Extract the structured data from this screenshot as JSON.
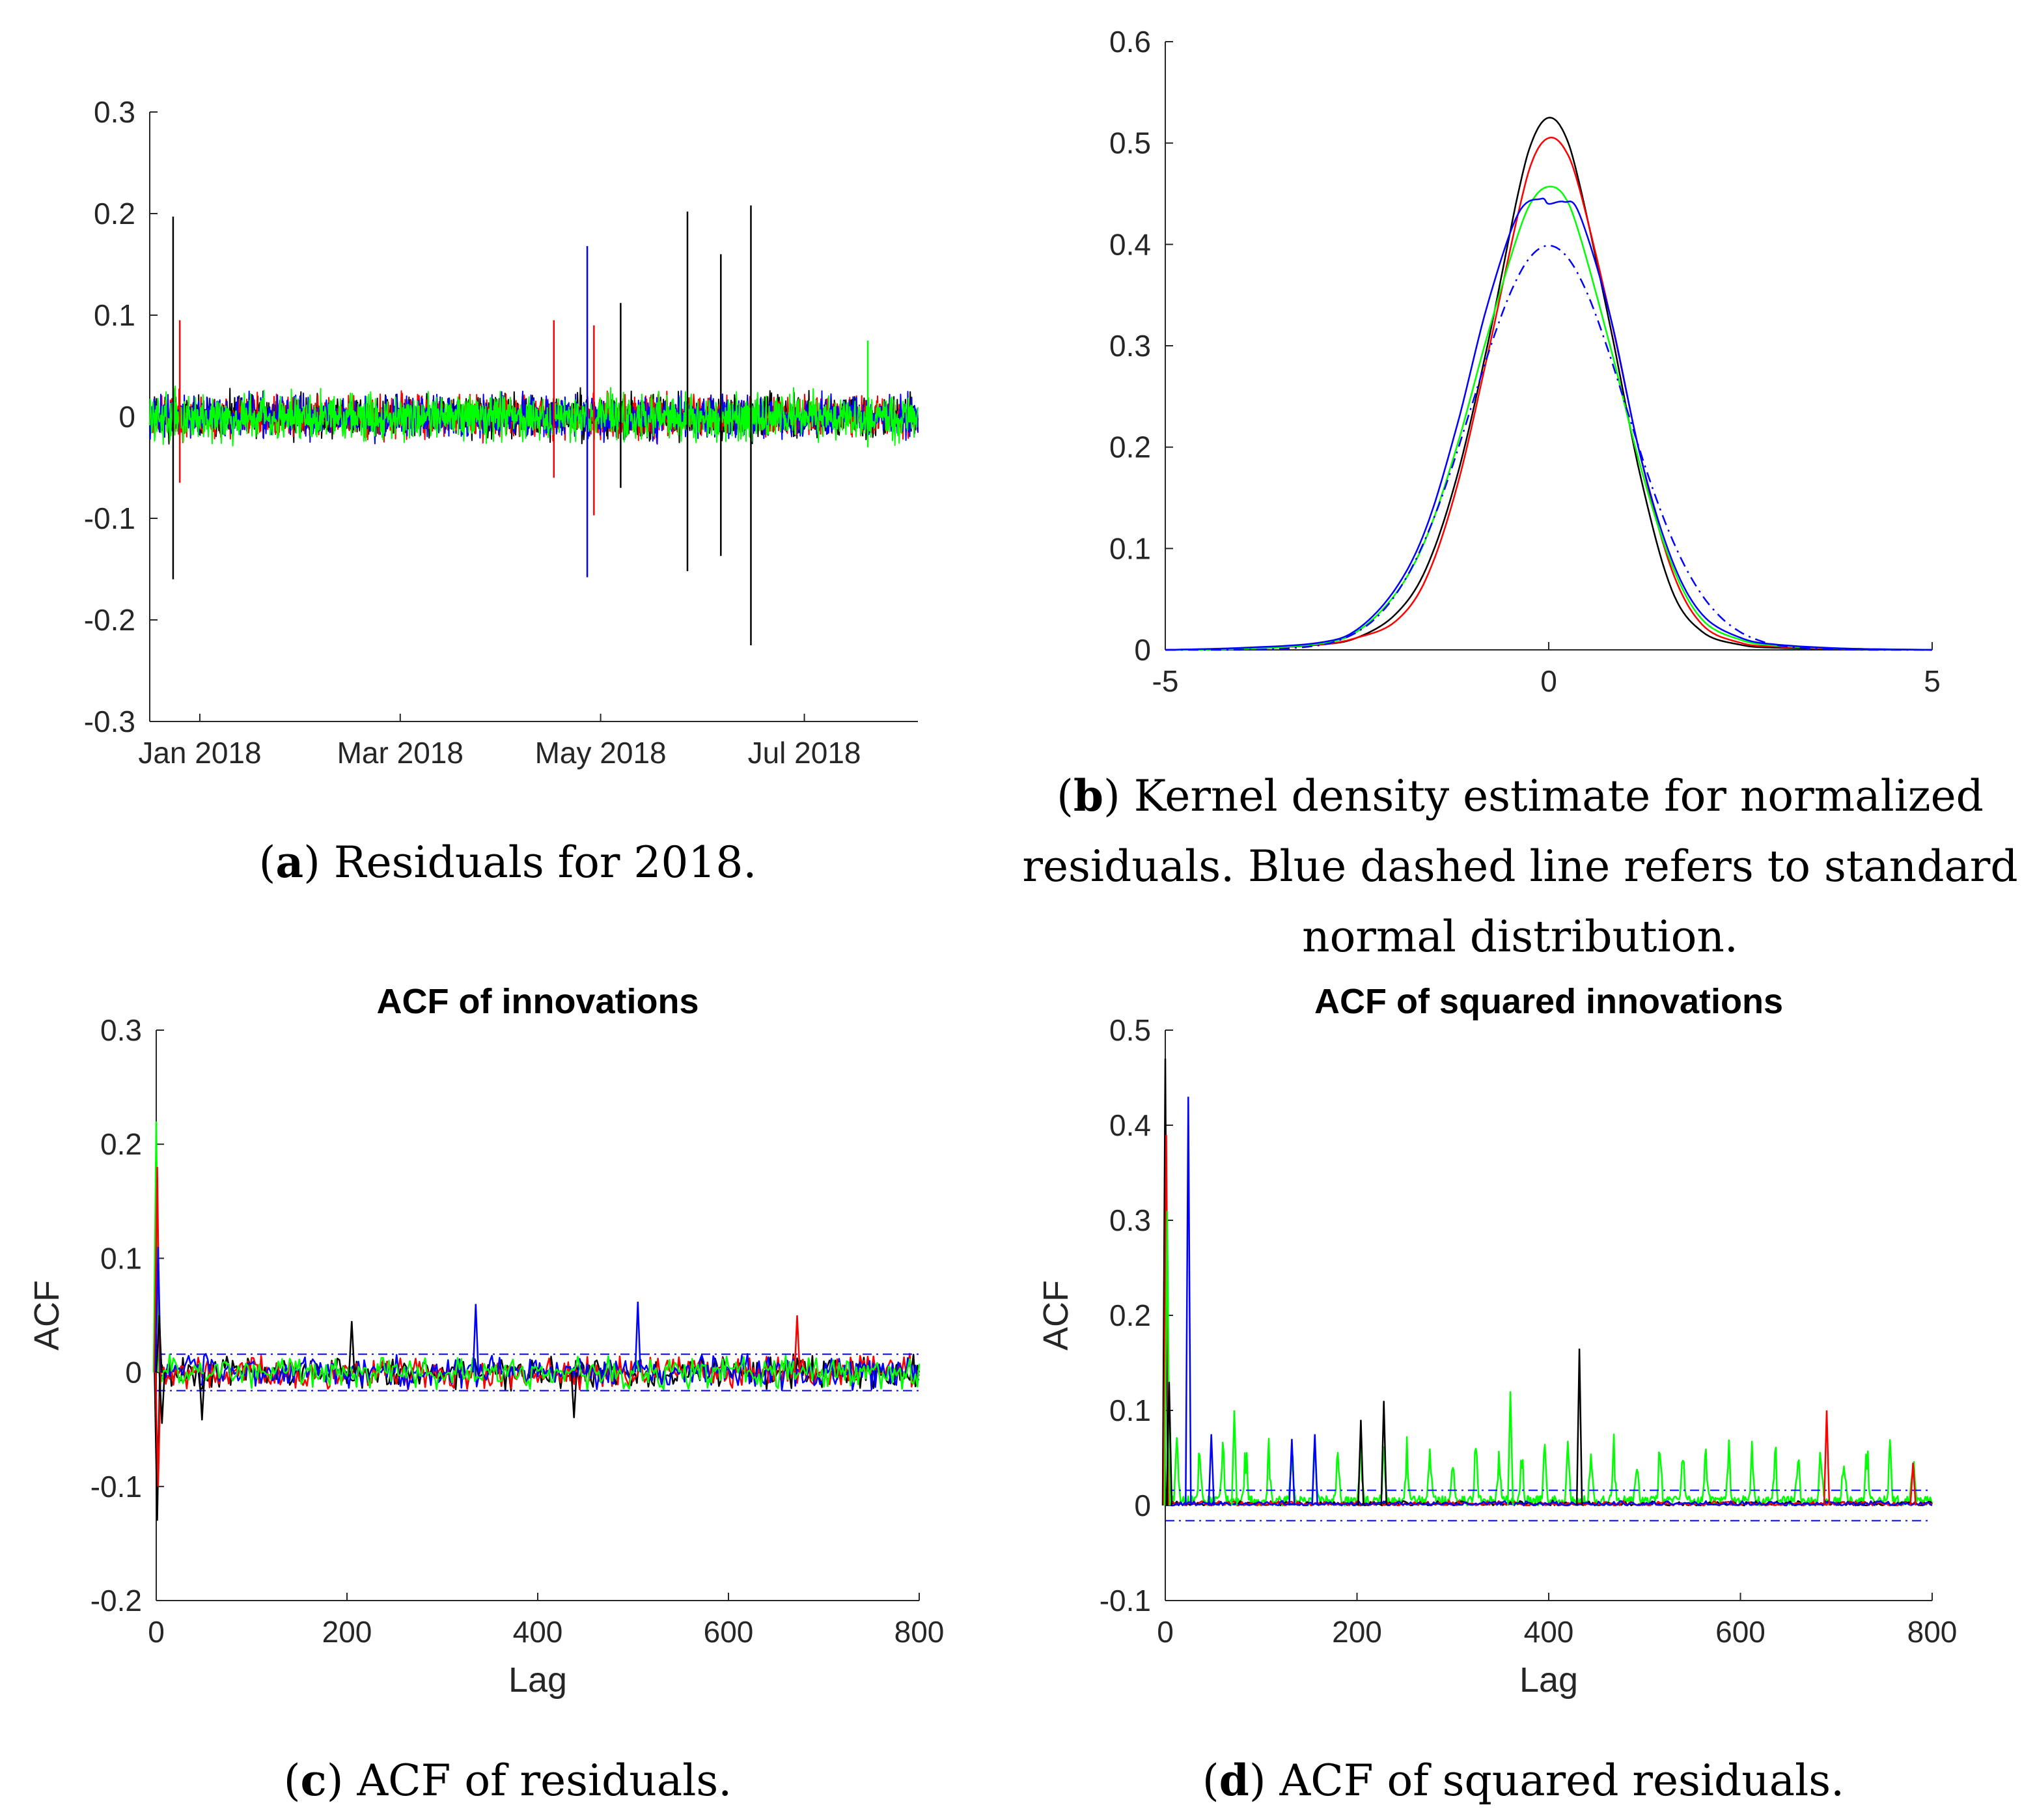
{
  "figure": {
    "colors": {
      "black": "#000000",
      "blue": "#0000ff",
      "red": "#ff0000",
      "green": "#00ff00",
      "axis": "#262626"
    },
    "captions": {
      "a": {
        "letter": "a",
        "text": "Residuals for 2018."
      },
      "b": {
        "letter": "b",
        "text": "Kernel density estimate for normalized residuals. Blue dashed line refers to standard normal distribution."
      },
      "c": {
        "letter": "c",
        "text": "ACF of residuals."
      },
      "d": {
        "letter": "d",
        "text": "ACF of squared residuals."
      }
    }
  },
  "chart_data": [
    {
      "id": "a",
      "type": "line",
      "title": "",
      "xlabel": "",
      "ylabel": "",
      "xlim": [
        0,
        230
      ],
      "ylim": [
        -0.3,
        0.3
      ],
      "yticks": [
        -0.3,
        -0.2,
        -0.1,
        0,
        0.1,
        0.2,
        0.3
      ],
      "ytick_labels": [
        "-0.3",
        "-0.2",
        "-0.1",
        "0",
        "0.1",
        "0.2",
        "0.3"
      ],
      "xticks": [
        15,
        75,
        135,
        196
      ],
      "xtick_labels": [
        "Jan 2018",
        "Mar 2018",
        "May 2018",
        "Jul 2018"
      ],
      "noise_band": {
        "x_start": 0,
        "x_end": 230,
        "amplitude": 0.022,
        "series": [
          "black",
          "red",
          "blue",
          "green"
        ]
      },
      "spikes": [
        {
          "x": 7,
          "low": -0.16,
          "high": 0.197,
          "color": "black"
        },
        {
          "x": 9,
          "low": -0.065,
          "high": 0.095,
          "color": "red"
        },
        {
          "x": 121,
          "low": -0.06,
          "high": 0.095,
          "color": "red"
        },
        {
          "x": 131,
          "low": -0.158,
          "high": 0.168,
          "color": "blue"
        },
        {
          "x": 133,
          "low": -0.097,
          "high": 0.09,
          "color": "red"
        },
        {
          "x": 141,
          "low": -0.07,
          "high": 0.112,
          "color": "black"
        },
        {
          "x": 161,
          "low": -0.152,
          "high": 0.202,
          "color": "black"
        },
        {
          "x": 171,
          "low": -0.137,
          "high": 0.16,
          "color": "black"
        },
        {
          "x": 180,
          "low": -0.225,
          "high": 0.208,
          "color": "black"
        },
        {
          "x": 215,
          "low": -0.03,
          "high": 0.075,
          "color": "green"
        }
      ]
    },
    {
      "id": "b",
      "type": "line",
      "title": "",
      "xlabel": "",
      "ylabel": "",
      "xlim": [
        -5,
        5
      ],
      "ylim": [
        0,
        0.6
      ],
      "xticks": [
        -5,
        0,
        5
      ],
      "xtick_labels": [
        "-5",
        "0",
        "5"
      ],
      "yticks": [
        0,
        0.1,
        0.2,
        0.3,
        0.4,
        0.5,
        0.6
      ],
      "ytick_labels": [
        "0",
        "0.1",
        "0.2",
        "0.3",
        "0.4",
        "0.5",
        "0.6"
      ],
      "series": [
        {
          "name": "black",
          "color": "black",
          "style": "solid",
          "x": [
            -5,
            -4,
            -3,
            -2.5,
            -2,
            -1.6,
            -1.2,
            -0.8,
            -0.4,
            -0.2,
            0,
            0.2,
            0.4,
            0.8,
            1.2,
            1.6,
            2,
            2.5,
            3,
            4,
            5
          ],
          "y": [
            0,
            0.001,
            0.005,
            0.012,
            0.035,
            0.08,
            0.17,
            0.3,
            0.45,
            0.505,
            0.525,
            0.51,
            0.46,
            0.32,
            0.17,
            0.06,
            0.018,
            0.005,
            0.002,
            0.001,
            0
          ]
        },
        {
          "name": "red",
          "color": "red",
          "style": "solid",
          "x": [
            -5,
            -4,
            -3,
            -2.5,
            -2,
            -1.6,
            -1.2,
            -0.8,
            -0.4,
            -0.2,
            0,
            0.2,
            0.4,
            0.8,
            1.2,
            1.6,
            2,
            2.5,
            3,
            4,
            5
          ],
          "y": [
            0,
            0.001,
            0.005,
            0.012,
            0.028,
            0.07,
            0.16,
            0.29,
            0.43,
            0.485,
            0.505,
            0.495,
            0.455,
            0.33,
            0.19,
            0.08,
            0.025,
            0.007,
            0.003,
            0.001,
            0
          ]
        },
        {
          "name": "green",
          "color": "green",
          "style": "solid",
          "x": [
            -5,
            -4,
            -3,
            -2.5,
            -2,
            -1.6,
            -1.2,
            -0.8,
            -0.4,
            -0.2,
            0,
            0.2,
            0.4,
            0.8,
            1.2,
            1.6,
            2,
            2.5,
            3,
            4,
            5
          ],
          "y": [
            0,
            0.001,
            0.006,
            0.018,
            0.055,
            0.11,
            0.2,
            0.31,
            0.41,
            0.445,
            0.457,
            0.448,
            0.41,
            0.3,
            0.18,
            0.085,
            0.03,
            0.01,
            0.004,
            0.001,
            0
          ]
        },
        {
          "name": "blue",
          "color": "blue",
          "style": "solid",
          "x": [
            -5,
            -4,
            -3,
            -2.5,
            -2,
            -1.6,
            -1.2,
            -0.8,
            -0.4,
            -0.1,
            0,
            0.2,
            0.4,
            0.8,
            1.2,
            1.6,
            2,
            2.5,
            3,
            4,
            5
          ],
          "y": [
            0,
            0.002,
            0.007,
            0.02,
            0.06,
            0.12,
            0.22,
            0.34,
            0.43,
            0.445,
            0.44,
            0.442,
            0.43,
            0.33,
            0.19,
            0.09,
            0.035,
            0.012,
            0.005,
            0.001,
            0
          ]
        },
        {
          "name": "standard normal",
          "color": "blue",
          "style": "dashdot",
          "x": [
            -5,
            -4.5,
            -4,
            -3.5,
            -3,
            -2.75,
            -2.5,
            -2.25,
            -2,
            -1.75,
            -1.5,
            -1.25,
            -1,
            -0.75,
            -0.5,
            -0.25,
            0,
            0.25,
            0.5,
            0.75,
            1,
            1.25,
            1.5,
            1.75,
            2,
            2.25,
            2.5,
            2.75,
            3,
            3.5,
            4,
            4.5,
            5
          ],
          "y": [
            0,
            0,
            0.0001,
            0.0009,
            0.0044,
            0.0091,
            0.0175,
            0.0317,
            0.054,
            0.0863,
            0.1295,
            0.1826,
            0.242,
            0.3011,
            0.3521,
            0.3867,
            0.3989,
            0.3867,
            0.3521,
            0.3011,
            0.242,
            0.1826,
            0.1295,
            0.0863,
            0.054,
            0.0317,
            0.0175,
            0.0091,
            0.0044,
            0.0009,
            0.0001,
            0,
            0
          ]
        }
      ]
    },
    {
      "id": "c",
      "type": "line",
      "title": "ACF of innovations",
      "xlabel": "Lag",
      "ylabel": "ACF",
      "xlim": [
        0,
        800
      ],
      "ylim": [
        -0.2,
        0.3
      ],
      "xticks": [
        0,
        200,
        400,
        600,
        800
      ],
      "xtick_labels": [
        "0",
        "200",
        "400",
        "600",
        "800"
      ],
      "yticks": [
        -0.2,
        -0.1,
        0,
        0.1,
        0.2,
        0.3
      ],
      "ytick_labels": [
        "-0.2",
        "-0.1",
        "0",
        "0.1",
        "0.2",
        "0.3"
      ],
      "bounds": [
        0.016,
        -0.016
      ],
      "noise": {
        "base": 0,
        "amplitude": 0.013,
        "x_start": 4,
        "x_end": 800,
        "series": [
          "black",
          "red",
          "blue",
          "green"
        ]
      },
      "peaks": [
        {
          "x": 0,
          "y": 0.22,
          "color": "green"
        },
        {
          "x": 1,
          "y": 0.18,
          "color": "red"
        },
        {
          "x": 1,
          "y": -0.13,
          "color": "black"
        },
        {
          "x": 2,
          "y": 0.11,
          "color": "blue"
        },
        {
          "x": 2,
          "y": -0.1,
          "color": "red"
        },
        {
          "x": 3,
          "y": 0.05,
          "color": "black"
        },
        {
          "x": 6,
          "y": -0.045,
          "color": "black"
        },
        {
          "x": 48,
          "y": -0.042,
          "color": "black"
        },
        {
          "x": 205,
          "y": 0.045,
          "color": "black"
        },
        {
          "x": 335,
          "y": 0.06,
          "color": "blue"
        },
        {
          "x": 438,
          "y": -0.04,
          "color": "black"
        },
        {
          "x": 505,
          "y": 0.062,
          "color": "blue"
        },
        {
          "x": 672,
          "y": 0.05,
          "color": "red"
        }
      ]
    },
    {
      "id": "d",
      "type": "line",
      "title": "ACF of squared innovations",
      "xlabel": "Lag",
      "ylabel": "ACF",
      "xlim": [
        0,
        800
      ],
      "ylim": [
        -0.1,
        0.5
      ],
      "xticks": [
        0,
        200,
        400,
        600,
        800
      ],
      "xtick_labels": [
        "0",
        "200",
        "400",
        "600",
        "800"
      ],
      "yticks": [
        -0.1,
        0,
        0.1,
        0.2,
        0.3,
        0.4,
        0.5
      ],
      "ytick_labels": [
        "-0.1",
        "0",
        "0.1",
        "0.2",
        "0.3",
        "0.4",
        "0.5"
      ],
      "bounds": [
        0.016,
        -0.016
      ],
      "noise": {
        "base": 0,
        "amplitude": 0.006,
        "x_start": 6,
        "x_end": 800,
        "series": [
          "black",
          "red",
          "blue"
        ]
      },
      "green_periodic": {
        "base": 0.005,
        "peak": 0.09,
        "period": 24,
        "x_start": 6,
        "x_end": 800
      },
      "peaks": [
        {
          "x": 0,
          "y": 0.47,
          "color": "black"
        },
        {
          "x": 1,
          "y": 0.39,
          "color": "red"
        },
        {
          "x": 2,
          "y": 0.31,
          "color": "green"
        },
        {
          "x": 4,
          "y": 0.13,
          "color": "black"
        },
        {
          "x": 24,
          "y": 0.43,
          "color": "blue"
        },
        {
          "x": 48,
          "y": 0.075,
          "color": "blue"
        },
        {
          "x": 72,
          "y": 0.1,
          "color": "green"
        },
        {
          "x": 132,
          "y": 0.07,
          "color": "blue"
        },
        {
          "x": 156,
          "y": 0.075,
          "color": "blue"
        },
        {
          "x": 204,
          "y": 0.09,
          "color": "black"
        },
        {
          "x": 228,
          "y": 0.11,
          "color": "black"
        },
        {
          "x": 360,
          "y": 0.12,
          "color": "green"
        },
        {
          "x": 432,
          "y": 0.165,
          "color": "black"
        },
        {
          "x": 690,
          "y": 0.1,
          "color": "red"
        },
        {
          "x": 780,
          "y": 0.045,
          "color": "red"
        }
      ]
    }
  ]
}
